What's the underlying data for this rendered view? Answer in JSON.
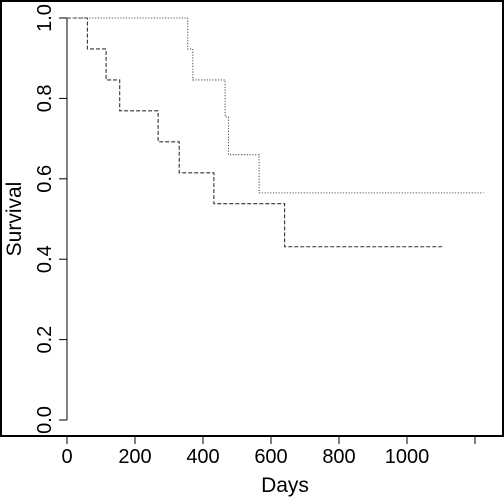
{
  "chart_data": {
    "type": "line",
    "title": "",
    "xlabel": "Days",
    "ylabel": "Survival",
    "xlim": [
      0,
      1200
    ],
    "ylim": [
      0,
      1
    ],
    "x_ticks": [
      0,
      200,
      400,
      600,
      800,
      1000,
      1200
    ],
    "x_tick_labels": [
      "0",
      "200",
      "400",
      "600",
      "800",
      "1000",
      ""
    ],
    "y_ticks": [
      0.0,
      0.2,
      0.4,
      0.6,
      0.8,
      1.0
    ],
    "y_tick_labels": [
      "0.0",
      "0.2",
      "0.4",
      "0.6",
      "0.8",
      "1.0"
    ],
    "grid": false,
    "legend": "none",
    "series": [
      {
        "line_style": "dashed",
        "color": "#333333",
        "step_points": [
          [
            0,
            1.0
          ],
          [
            60,
            0.923
          ],
          [
            115,
            0.846
          ],
          [
            155,
            0.769
          ],
          [
            268,
            0.692
          ],
          [
            330,
            0.615
          ],
          [
            432,
            0.538
          ],
          [
            640,
            0.431
          ],
          [
            1110,
            0.431
          ]
        ]
      },
      {
        "line_style": "dotted",
        "color": "#555555",
        "step_points": [
          [
            0,
            1.0
          ],
          [
            355,
            0.923
          ],
          [
            370,
            0.846
          ],
          [
            465,
            0.754
          ],
          [
            475,
            0.66
          ],
          [
            565,
            0.565
          ],
          [
            1225,
            0.565
          ]
        ]
      }
    ]
  }
}
